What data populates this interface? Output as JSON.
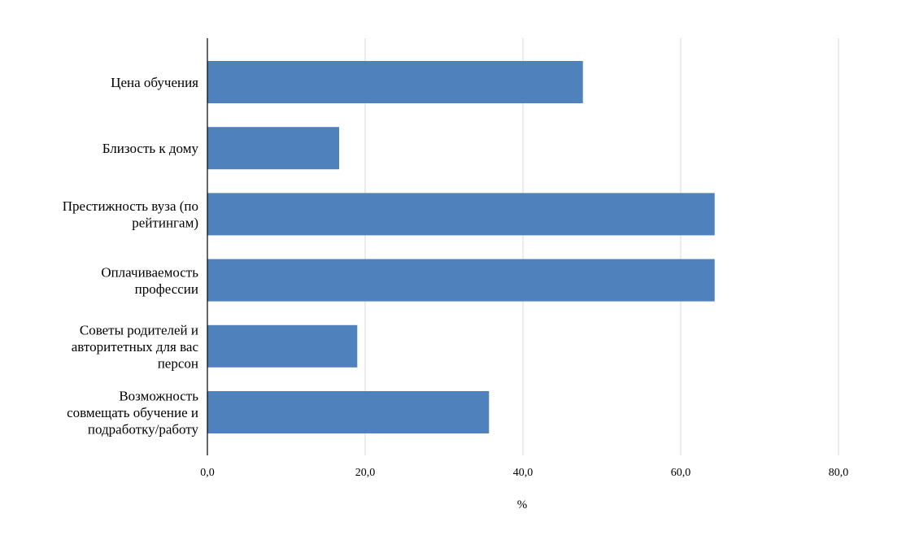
{
  "chart_data": {
    "type": "bar",
    "orientation": "horizontal",
    "categories": [
      [
        "Цена обучения"
      ],
      [
        "Близость к дому"
      ],
      [
        "Престижность вуза (по",
        "рейтингам)"
      ],
      [
        "Оплачиваемость",
        "профессии"
      ],
      [
        "Советы родителей и",
        "авторитетных для вас",
        "персон"
      ],
      [
        "Возможность",
        "совмещать обучение и",
        "подработку/работу"
      ]
    ],
    "values": [
      47.6,
      16.7,
      64.3,
      64.3,
      19.0,
      35.7
    ],
    "xlim": [
      0,
      80
    ],
    "xticks": [
      "0,0",
      "20,0",
      "40,0",
      "60,0",
      "80,0"
    ],
    "xtick_values": [
      0,
      20,
      40,
      60,
      80
    ],
    "xlabel": "%",
    "ylabel": "",
    "title": "",
    "grid": "vertical",
    "legend": "none",
    "bar_color": "#4f81bd",
    "grid_color": "#d9d9d9",
    "axis_color": "#000000"
  }
}
